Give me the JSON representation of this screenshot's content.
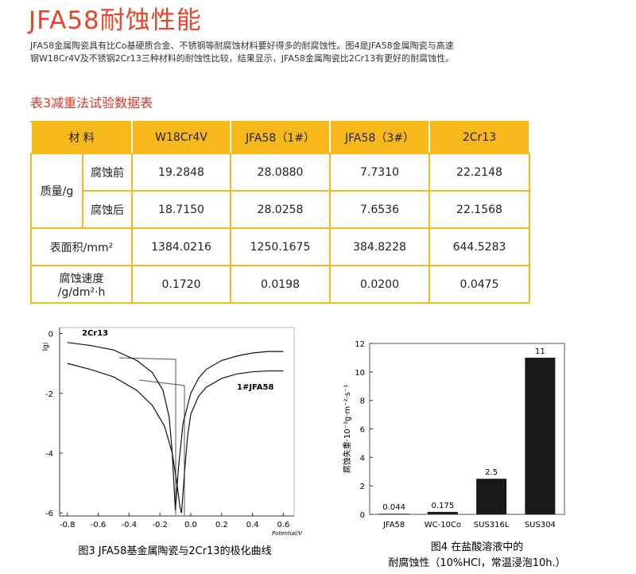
{
  "header": {
    "title": "JFA58耐蚀性能"
  },
  "intro": {
    "lines": [
      "JFA58金属陶瓷具有比Co基硬质合金、不锈钢等耐腐蚀材料要好得多的耐腐蚀性。图4是JFA58金属陶瓷与高速",
      "钢W18Cr4V及不锈钢2Cr13三种材料的耐蚀性比较，结果显示，JFA58金属陶瓷比2Cr13有更好的耐腐蚀性。"
    ]
  },
  "table": {
    "caption": "表3减重法试验数据表",
    "header": [
      "材 料",
      "W18Cr4V",
      "JFA58（1#）",
      "JFA58（3#）",
      "2Cr13"
    ],
    "rows": [
      {
        "label": [
          "质量/g"
        ],
        "sub": [
          "腐蚀前",
          "腐蚀后"
        ],
        "values": [
          [
            "19.2848",
            "28.0880",
            "7.7310",
            "22.2148"
          ],
          [
            "18.7150",
            "28.0258",
            "7.6536",
            "22.1568"
          ]
        ]
      },
      {
        "label": [
          "表面积/mm²"
        ],
        "values": [
          [
            "1384.0216",
            "1250.1675",
            "384.8228",
            "644.5283"
          ]
        ]
      },
      {
        "label": [
          "腐蚀速度",
          "/g/dm²·h"
        ],
        "values": [
          [
            "0.1720",
            "0.0198",
            "0.0200",
            "0.0475"
          ]
        ]
      }
    ]
  },
  "chart_data": [
    {
      "type": "line",
      "caption": [
        "图3 JFA58基金属陶瓷与2Cr13的极化曲线"
      ],
      "x_label": "Potential/V",
      "y_label": "lgi",
      "xlim": [
        -0.85,
        0.67
      ],
      "ylim": [
        -6.1,
        0.2
      ],
      "xticks": [
        -0.8,
        -0.6,
        -0.4,
        -0.2,
        {
          "value": 0,
          "label": "0.0"
        },
        0.2,
        0.4,
        0.6
      ],
      "yticks": [
        0,
        -2,
        -4,
        -6
      ],
      "series": [
        {
          "name": "2Cr13",
          "color": "#111111",
          "x": [
            -0.8,
            -0.65,
            -0.5,
            -0.35,
            -0.25,
            -0.18,
            -0.14,
            -0.12,
            -0.1,
            -0.08,
            -0.05,
            0.0,
            0.05,
            0.1,
            0.2,
            0.3,
            0.4,
            0.5,
            0.6
          ],
          "values": [
            -0.3,
            -0.4,
            -0.55,
            -0.9,
            -1.3,
            -1.9,
            -2.8,
            -4.0,
            -5.9,
            -4.5,
            -3.0,
            -2.0,
            -1.5,
            -1.2,
            -0.9,
            -0.75,
            -0.65,
            -0.6,
            -0.6
          ]
        },
        {
          "name": "1#JFA58",
          "color": "#111111",
          "x": [
            -0.8,
            -0.65,
            -0.5,
            -0.35,
            -0.25,
            -0.17,
            -0.12,
            -0.09,
            -0.07,
            -0.06,
            -0.04,
            -0.02,
            0.0,
            0.05,
            0.1,
            0.2,
            0.3,
            0.4,
            0.5,
            0.6
          ],
          "values": [
            -1.0,
            -1.2,
            -1.45,
            -1.9,
            -2.4,
            -3.1,
            -4.0,
            -5.0,
            -5.8,
            -6.0,
            -4.6,
            -3.4,
            -2.7,
            -2.1,
            -1.8,
            -1.5,
            -1.35,
            -1.28,
            -1.25,
            -1.25
          ]
        }
      ]
    },
    {
      "type": "bar",
      "caption": [
        "图4 在盐酸溶液中的",
        "耐腐蚀性（10%HCl，常温浸泡10h.）"
      ],
      "y_label": "腐蚀失重·10⁻³g·m⁻²·s⁻¹",
      "categories": [
        "JFA58",
        "WC-10Co",
        "SUS316L",
        "SUS304"
      ],
      "values": [
        0.044,
        0.175,
        2.5,
        11
      ],
      "color": "#1a1a1a",
      "ylim": [
        0,
        12
      ],
      "yticks": [
        0,
        2,
        4,
        6,
        8,
        10,
        12
      ]
    }
  ]
}
